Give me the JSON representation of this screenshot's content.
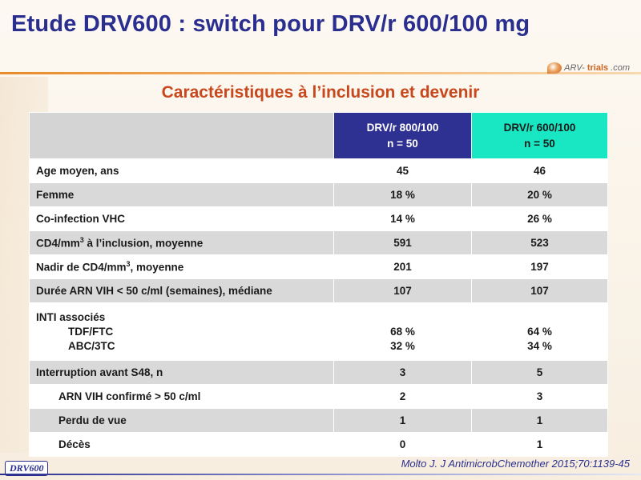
{
  "slide": {
    "title": "Etude DRV600 : switch pour DRV/r 600/100 mg",
    "subtitle": "Caractéristiques à l’inclusion et devenir"
  },
  "logo": {
    "prefix": "ARV-",
    "brand": "trials",
    "suffix": ".com"
  },
  "table": {
    "headers": [
      {
        "line1": "DRV/r 800/100",
        "line2": "n = 50",
        "color": "#2e3192"
      },
      {
        "line1": "DRV/r 600/100",
        "line2": "n = 50",
        "color": "#19e6c2"
      }
    ],
    "rows": [
      {
        "label": "Age moyen, ans",
        "a": "45",
        "b": "46"
      },
      {
        "label": "Femme",
        "a": "18 %",
        "b": "20 %"
      },
      {
        "label": "Co-infection VHC",
        "a": "14 %",
        "b": "26 %"
      },
      {
        "label_pre": "CD4/mm",
        "label_sup": "3",
        "label_post": " à l’inclusion, moyenne",
        "a": "591",
        "b": "523"
      },
      {
        "label_pre": "Nadir de CD4/mm",
        "label_sup": "3",
        "label_post": ", moyenne",
        "a": "201",
        "b": "197"
      },
      {
        "label": "Durée ARN VIH < 50 c/ml (semaines), médiane",
        "a": "107",
        "b": "107"
      },
      {
        "label": "INTI associés",
        "subs": [
          {
            "label": "TDF/FTC",
            "a": "68 %",
            "b": "64 %"
          },
          {
            "label": "ABC/3TC",
            "a": "32 %",
            "b": "34 %"
          }
        ]
      },
      {
        "label": "Interruption avant S48, n",
        "a": "3",
        "b": "5"
      },
      {
        "label": "ARN VIH confirmé > 50 c/ml",
        "a": "2",
        "b": "3"
      },
      {
        "label": "Perdu de vue",
        "a": "1",
        "b": "1"
      },
      {
        "label": "Décès",
        "a": "0",
        "b": "1"
      }
    ]
  },
  "footer": {
    "tag": "DRV600",
    "citation": "Molto J. J AntimicrobChemother 2015;70:1139-45"
  }
}
